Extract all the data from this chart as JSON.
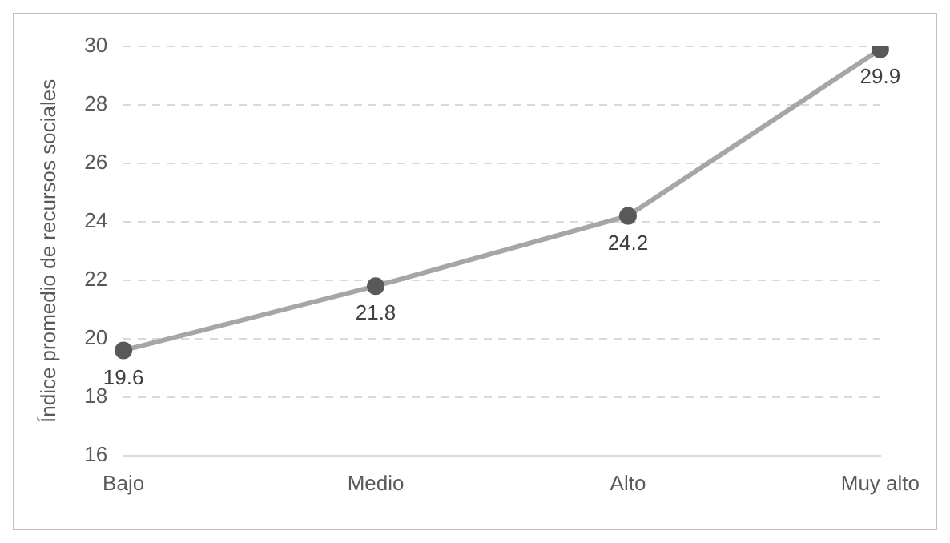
{
  "chart_data": {
    "type": "line",
    "ylabel": "Índice promedio de recursos sociales",
    "categories": [
      "Bajo",
      "Medio",
      "Alto",
      "Muy alto"
    ],
    "series": [
      {
        "color": "#a6a6a6",
        "values": [
          19.6,
          21.8,
          24.2,
          29.9
        ]
      }
    ],
    "ylim": [
      16,
      30
    ],
    "yticks": [
      16,
      18,
      20,
      22,
      24,
      26,
      28,
      30
    ],
    "grid": "y",
    "marker": "circle",
    "line_style": "solid",
    "data_labels": true,
    "legend": false
  }
}
